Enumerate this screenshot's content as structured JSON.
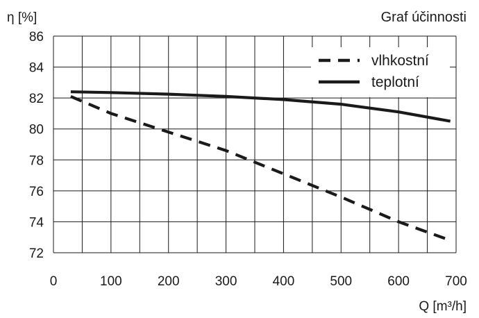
{
  "chart_data": {
    "type": "line",
    "title": "Graf účinnosti",
    "xlabel": "Q [m³/h]",
    "ylabel": "η [%]",
    "xlim": [
      0,
      700
    ],
    "ylim": [
      72,
      86
    ],
    "x_ticks": [
      0,
      100,
      200,
      300,
      400,
      500,
      600,
      700
    ],
    "y_ticks": [
      72,
      74,
      76,
      78,
      80,
      82,
      84,
      86
    ],
    "x_tick_labels": [
      "0",
      "100",
      "200",
      "300",
      "400",
      "500",
      "600",
      "700"
    ],
    "y_tick_labels": [
      "72",
      "74",
      "76",
      "78",
      "80",
      "82",
      "84",
      "86"
    ],
    "grid": true,
    "legend_position": "top-right",
    "series": [
      {
        "name": "vlhkostní",
        "style": "dashed",
        "color": "#1a1a1a",
        "x": [
          30,
          100,
          200,
          300,
          400,
          500,
          600,
          690
        ],
        "y": [
          82.1,
          81.0,
          79.8,
          78.6,
          77.1,
          75.6,
          74.0,
          72.8
        ]
      },
      {
        "name": "teplotní",
        "style": "solid",
        "color": "#1a1a1a",
        "x": [
          30,
          100,
          200,
          300,
          400,
          500,
          600,
          690
        ],
        "y": [
          82.4,
          82.35,
          82.25,
          82.1,
          81.9,
          81.6,
          81.1,
          80.5
        ]
      }
    ]
  }
}
